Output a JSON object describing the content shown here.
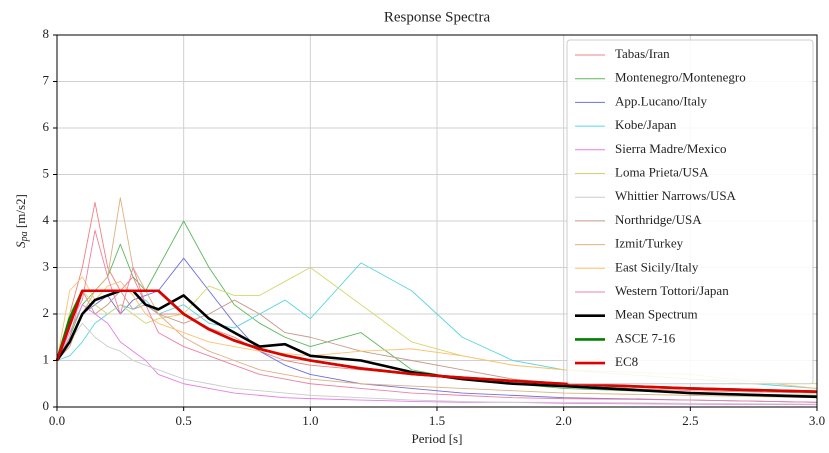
{
  "chart_data": {
    "type": "line",
    "title": "Response Spectra",
    "xlabel": "Period [s]",
    "ylabel": {
      "symbol": "S",
      "subscript": "pa",
      "unit": "[m/s2]"
    },
    "xlim": [
      0,
      3
    ],
    "ylim": [
      0,
      8
    ],
    "xticks": [
      {
        "value": 0,
        "label": "0.0"
      },
      0.5,
      {
        "value": 1,
        "label": "1.0"
      },
      1.5,
      {
        "value": 2,
        "label": "2.0"
      },
      2.5,
      {
        "value": 3,
        "label": "3.0"
      }
    ],
    "yticks": [
      0,
      1,
      2,
      3,
      4,
      5,
      6,
      7,
      8
    ],
    "grid": true,
    "legend": "upper right",
    "x": [
      0,
      0.05,
      0.1,
      0.15,
      0.2,
      0.25,
      0.3,
      0.35,
      0.4,
      0.5,
      0.6,
      0.7,
      0.8,
      0.9,
      1.0,
      1.2,
      1.4,
      1.6,
      1.8,
      2.0,
      2.5,
      3.0
    ],
    "series": [
      {
        "name": "Tabas/Iran",
        "color": "#f08080",
        "values": [
          1,
          2.0,
          3.0,
          4.4,
          3.0,
          2.5,
          2.8,
          2.2,
          2.0,
          2.0,
          1.7,
          1.5,
          1.2,
          1.0,
          0.9,
          0.8,
          0.7,
          0.6,
          0.5,
          0.45,
          0.35,
          0.3
        ]
      },
      {
        "name": "Montenegro/Montenegro",
        "color": "#5cb85c",
        "values": [
          1,
          1.5,
          2.2,
          2.5,
          2.8,
          3.5,
          2.8,
          2.5,
          3.0,
          4.0,
          3.0,
          2.2,
          1.8,
          1.5,
          1.3,
          1.6,
          0.8,
          0.6,
          0.5,
          0.4,
          0.3,
          0.25
        ]
      },
      {
        "name": "App.Lucano/Italy",
        "color": "#6f6fdf",
        "values": [
          1,
          1.3,
          2.0,
          2.2,
          2.4,
          2.0,
          2.3,
          2.4,
          2.5,
          3.2,
          2.5,
          1.8,
          1.2,
          0.9,
          0.7,
          0.5,
          0.4,
          0.3,
          0.25,
          0.2,
          0.15,
          0.1
        ]
      },
      {
        "name": "Kobe/Japan",
        "color": "#5bd6e0",
        "values": [
          1,
          1.1,
          1.4,
          1.8,
          2.0,
          2.2,
          2.1,
          2.3,
          2.0,
          2.2,
          1.8,
          1.7,
          2.0,
          2.3,
          1.9,
          3.1,
          2.5,
          1.5,
          1.0,
          0.8,
          0.6,
          0.4
        ]
      },
      {
        "name": "Sierra Madre/Mexico",
        "color": "#e67fe6",
        "values": [
          1,
          1.6,
          2.2,
          2.0,
          1.8,
          1.4,
          1.2,
          1.0,
          0.7,
          0.5,
          0.4,
          0.3,
          0.25,
          0.2,
          0.18,
          0.15,
          0.12,
          0.1,
          0.1,
          0.08,
          0.06,
          0.05
        ]
      },
      {
        "name": "Loma Prieta/USA",
        "color": "#d6d66f",
        "values": [
          1,
          2.0,
          2.5,
          2.2,
          2.0,
          2.2,
          2.0,
          1.8,
          1.9,
          2.0,
          2.6,
          2.4,
          2.4,
          2.7,
          3.0,
          2.2,
          1.4,
          1.1,
          0.9,
          0.8,
          0.6,
          0.5
        ]
      },
      {
        "name": "Whittier Narrows/USA",
        "color": "#cccccc",
        "values": [
          1,
          1.4,
          1.8,
          1.5,
          1.3,
          1.2,
          1.0,
          0.9,
          0.8,
          0.6,
          0.5,
          0.4,
          0.35,
          0.3,
          0.25,
          0.2,
          0.15,
          0.12,
          0.1,
          0.1,
          0.08,
          0.06
        ]
      },
      {
        "name": "Northridge/USA",
        "color": "#c89a8a",
        "values": [
          1,
          1.5,
          2.5,
          2.0,
          2.2,
          2.5,
          2.1,
          2.2,
          2.0,
          1.8,
          2.0,
          2.3,
          2.0,
          1.6,
          1.5,
          1.2,
          1.0,
          0.8,
          0.6,
          0.5,
          0.3,
          0.2
        ]
      },
      {
        "name": "Izmit/Turkey",
        "color": "#e0b080",
        "values": [
          1,
          1.3,
          2.0,
          2.5,
          2.8,
          4.5,
          3.0,
          2.5,
          2.0,
          1.5,
          1.2,
          1.0,
          0.8,
          0.7,
          0.6,
          0.5,
          0.45,
          0.4,
          0.35,
          0.3,
          0.25,
          0.2
        ]
      },
      {
        "name": "East Sicily/Italy",
        "color": "#ffc070",
        "values": [
          1,
          2.5,
          2.8,
          2.3,
          2.6,
          2.7,
          2.4,
          2.0,
          1.8,
          1.6,
          1.4,
          1.3,
          1.2,
          1.15,
          1.1,
          1.2,
          1.25,
          1.1,
          0.9,
          0.8,
          0.7,
          0.4
        ]
      },
      {
        "name": "Western Tottori/Japan",
        "color": "#f080a0",
        "values": [
          1,
          1.8,
          2.3,
          3.8,
          2.8,
          2.0,
          3.0,
          2.2,
          1.6,
          1.3,
          1.1,
          0.9,
          0.7,
          0.6,
          0.5,
          0.4,
          0.3,
          0.25,
          0.2,
          0.18,
          0.15,
          0.1
        ]
      },
      {
        "name": "Mean Spectrum",
        "color": "#000000",
        "values": [
          1.0,
          1.4,
          2.0,
          2.3,
          2.4,
          2.5,
          2.5,
          2.2,
          2.1,
          2.4,
          1.9,
          1.6,
          1.3,
          1.35,
          1.1,
          1.0,
          0.75,
          0.6,
          0.5,
          0.45,
          0.3,
          0.22
        ]
      },
      {
        "name": "ASCE 7-16",
        "color": "#008000",
        "values": [
          1,
          1.9,
          2.5,
          2.5,
          2.5,
          2.5,
          2.5,
          2.5,
          2.5,
          2.0,
          1.67,
          1.43,
          1.25,
          1.11,
          1.0,
          0.83,
          0.71,
          0.63,
          0.56,
          0.5,
          0.4,
          0.33
        ]
      },
      {
        "name": "EC8",
        "color": "#e00000",
        "values": [
          1,
          1.75,
          2.5,
          2.5,
          2.5,
          2.5,
          2.5,
          2.5,
          2.5,
          2.0,
          1.67,
          1.43,
          1.25,
          1.11,
          1.0,
          0.83,
          0.71,
          0.63,
          0.56,
          0.5,
          0.4,
          0.33
        ]
      }
    ]
  }
}
